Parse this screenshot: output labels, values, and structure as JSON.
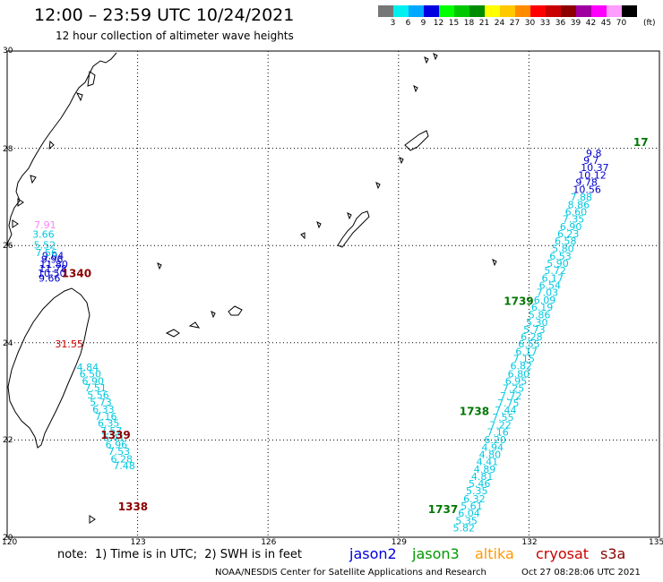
{
  "header": {
    "title": "12:00 – 23:59 UTC 10/24/2021",
    "subtitle": "12 hour collection of altimeter wave heights"
  },
  "colorbar": {
    "colors": [
      "#777777",
      "#00f0f0",
      "#00a8ff",
      "#0000e0",
      "#00ff00",
      "#00c800",
      "#008c00",
      "#ffff00",
      "#ffc800",
      "#ff8c00",
      "#ff0000",
      "#c80000",
      "#8c0000",
      "#a000a0",
      "#ff00ff",
      "#ff9cff",
      "#000000"
    ],
    "ticks": [
      "3",
      "6",
      "9",
      "12",
      "15",
      "18",
      "21",
      "24",
      "27",
      "30",
      "33",
      "36",
      "39",
      "42",
      "45",
      "70"
    ],
    "unit": "(ft)"
  },
  "axes": {
    "lat_labels": [
      "30",
      "28",
      "26",
      "24",
      "22",
      "20"
    ],
    "lon_labels": [
      "120",
      "123",
      "126",
      "129",
      "132",
      "135"
    ]
  },
  "tracks": [
    {
      "satellite": "jason2",
      "color": "#0000cc",
      "points": [
        {
          "v": "9.04",
          "lon": 120.8,
          "lat": 25.72
        },
        {
          "v": "9.96",
          "lon": 120.78,
          "lat": 25.64
        },
        {
          "v": "11.80",
          "lon": 120.75,
          "lat": 25.54
        },
        {
          "v": "11.78",
          "lon": 120.73,
          "lat": 25.45
        },
        {
          "v": "10.50",
          "lon": 120.7,
          "lat": 25.36
        },
        {
          "v": "9.66",
          "lon": 120.72,
          "lat": 25.26
        }
      ]
    },
    {
      "satellite": "s3a_north",
      "color": "#00c8e0",
      "points": [
        {
          "v": "3.66",
          "lon": 120.58,
          "lat": 26.16
        },
        {
          "v": "5.52",
          "lon": 120.61,
          "lat": 25.94
        },
        {
          "v": "7.56",
          "lon": 120.65,
          "lat": 25.78
        }
      ]
    },
    {
      "satellite": "cryosat_red",
      "color": "#cc0000",
      "points": [
        {
          "v": "31.55",
          "lon": 121.1,
          "lat": 23.9
        }
      ]
    },
    {
      "satellite": "s3a_pink",
      "color": "#ff80ff",
      "points": [
        {
          "v": "7.91",
          "lon": 120.62,
          "lat": 26.35
        }
      ]
    },
    {
      "satellite": "s3a_south",
      "color": "#00c8e0",
      "points": [
        {
          "v": "4.84",
          "lon": 121.6,
          "lat": 23.43
        },
        {
          "v": "6.50",
          "lon": 121.66,
          "lat": 23.29
        },
        {
          "v": "6.90",
          "lon": 121.72,
          "lat": 23.14
        },
        {
          "v": "7.51",
          "lon": 121.78,
          "lat": 23.0
        },
        {
          "v": "5.56",
          "lon": 121.84,
          "lat": 22.85
        },
        {
          "v": "5.73",
          "lon": 121.9,
          "lat": 22.71
        },
        {
          "v": "6.33",
          "lon": 121.96,
          "lat": 22.56
        },
        {
          "v": "7.16",
          "lon": 122.02,
          "lat": 22.41
        },
        {
          "v": "6.35",
          "lon": 122.08,
          "lat": 22.27
        },
        {
          "v": "7.57",
          "lon": 122.14,
          "lat": 22.12
        },
        {
          "v": "6.41",
          "lon": 122.2,
          "lat": 21.98
        },
        {
          "v": "6.96",
          "lon": 122.26,
          "lat": 21.83
        },
        {
          "v": "7.53",
          "lon": 122.32,
          "lat": 21.69
        },
        {
          "v": "6.28",
          "lon": 122.38,
          "lat": 21.54
        },
        {
          "v": "7.48",
          "lon": 122.44,
          "lat": 21.4
        }
      ]
    },
    {
      "satellite": "s3a_east",
      "color": "#00c8e0",
      "points": [
        {
          "v": "5.82",
          "lon": 130.25,
          "lat": 20.12
        },
        {
          "v": "5.35",
          "lon": 130.31,
          "lat": 20.27
        },
        {
          "v": "6.04",
          "lon": 130.37,
          "lat": 20.42
        },
        {
          "v": "5.61",
          "lon": 130.43,
          "lat": 20.57
        },
        {
          "v": "6.32",
          "lon": 130.49,
          "lat": 20.72
        },
        {
          "v": "5.35",
          "lon": 130.55,
          "lat": 20.88
        },
        {
          "v": "5.46",
          "lon": 130.61,
          "lat": 21.03
        },
        {
          "v": "4.81",
          "lon": 130.67,
          "lat": 21.18
        },
        {
          "v": "4.89",
          "lon": 130.73,
          "lat": 21.33
        },
        {
          "v": "4.41",
          "lon": 130.79,
          "lat": 21.48
        },
        {
          "v": "4.80",
          "lon": 130.85,
          "lat": 21.63
        },
        {
          "v": "4.94",
          "lon": 130.91,
          "lat": 21.78
        },
        {
          "v": "6.20",
          "lon": 130.97,
          "lat": 21.93
        },
        {
          "v": "7.16",
          "lon": 131.03,
          "lat": 22.09
        },
        {
          "v": "7.22",
          "lon": 131.09,
          "lat": 22.24
        },
        {
          "v": "7.55",
          "lon": 131.15,
          "lat": 22.39
        },
        {
          "v": "7.44",
          "lon": 131.21,
          "lat": 22.54
        },
        {
          "v": "7.75",
          "lon": 131.27,
          "lat": 22.69
        },
        {
          "v": "7.72",
          "lon": 131.33,
          "lat": 22.84
        },
        {
          "v": "7.25",
          "lon": 131.39,
          "lat": 22.99
        },
        {
          "v": "6.95",
          "lon": 131.45,
          "lat": 23.14
        },
        {
          "v": "6.80",
          "lon": 131.51,
          "lat": 23.29
        },
        {
          "v": "6.82",
          "lon": 131.57,
          "lat": 23.45
        },
        {
          "v": "7.15",
          "lon": 131.63,
          "lat": 23.6
        },
        {
          "v": "6.17",
          "lon": 131.69,
          "lat": 23.75
        },
        {
          "v": "6.55",
          "lon": 131.75,
          "lat": 23.9
        },
        {
          "v": "6.28",
          "lon": 131.81,
          "lat": 24.05
        },
        {
          "v": "5.73",
          "lon": 131.87,
          "lat": 24.2
        },
        {
          "v": "5.30",
          "lon": 131.93,
          "lat": 24.35
        },
        {
          "v": "5.86",
          "lon": 131.99,
          "lat": 24.5
        },
        {
          "v": "6.19",
          "lon": 132.05,
          "lat": 24.66
        },
        {
          "v": "6.09",
          "lon": 132.11,
          "lat": 24.81
        },
        {
          "v": "7.03",
          "lon": 132.17,
          "lat": 24.96
        },
        {
          "v": "6.54",
          "lon": 132.23,
          "lat": 25.11
        },
        {
          "v": "6.17",
          "lon": 132.29,
          "lat": 25.26
        },
        {
          "v": "5.72",
          "lon": 132.35,
          "lat": 25.41
        },
        {
          "v": "5.90",
          "lon": 132.41,
          "lat": 25.56
        },
        {
          "v": "6.53",
          "lon": 132.47,
          "lat": 25.71
        },
        {
          "v": "5.80",
          "lon": 132.53,
          "lat": 25.87
        },
        {
          "v": "6.58",
          "lon": 132.59,
          "lat": 26.02
        },
        {
          "v": "6.23",
          "lon": 132.65,
          "lat": 26.17
        },
        {
          "v": "6.90",
          "lon": 132.71,
          "lat": 26.32
        },
        {
          "v": "7.35",
          "lon": 132.77,
          "lat": 26.47
        },
        {
          "v": "6.60",
          "lon": 132.83,
          "lat": 26.62
        },
        {
          "v": "8.86",
          "lon": 132.89,
          "lat": 26.77
        },
        {
          "v": "7.88",
          "lon": 132.95,
          "lat": 26.92
        }
      ]
    },
    {
      "satellite": "jason2_east",
      "color": "#0000cc",
      "points": [
        {
          "v": "10.56",
          "lon": 133.01,
          "lat": 27.08
        },
        {
          "v": "9.78",
          "lon": 133.07,
          "lat": 27.23
        },
        {
          "v": "10.12",
          "lon": 133.13,
          "lat": 27.38
        },
        {
          "v": "10.37",
          "lon": 133.19,
          "lat": 27.53
        },
        {
          "v": "9.7",
          "lon": 133.25,
          "lat": 27.68
        },
        {
          "v": "9.8",
          "lon": 133.31,
          "lat": 27.83
        }
      ]
    }
  ],
  "time_labels": [
    {
      "text": "1340",
      "color": "#8b0000",
      "lon": 121.25,
      "lat": 25.35
    },
    {
      "text": "1339",
      "color": "#8b0000",
      "lon": 122.15,
      "lat": 22.03
    },
    {
      "text": "1338",
      "color": "#8b0000",
      "lon": 122.55,
      "lat": 20.55
    },
    {
      "text": "1739",
      "color": "#007700",
      "lon": 131.42,
      "lat": 24.78
    },
    {
      "text": "1738",
      "color": "#007700",
      "lon": 130.4,
      "lat": 22.51
    },
    {
      "text": "1737",
      "color": "#007700",
      "lon": 129.68,
      "lat": 20.5
    },
    {
      "text": "17",
      "color": "#007700",
      "lon": 134.4,
      "lat": 28.05
    }
  ],
  "note": "note:  1) Time is in UTC;  2) SWH is in feet",
  "legend": [
    {
      "name": "jason2",
      "color": "#0000dd"
    },
    {
      "name": "jason3",
      "color": "#009900"
    },
    {
      "name": "altika",
      "color": "#ff9900"
    },
    {
      "name": "cryosat",
      "color": "#cc0000"
    },
    {
      "name": "s3a",
      "color": "#8b0000"
    }
  ],
  "credit": "NOAA/NESDIS Center for Satellite Applications and Research",
  "timestamp": "Oct 27 08:28:06 UTC 2021"
}
